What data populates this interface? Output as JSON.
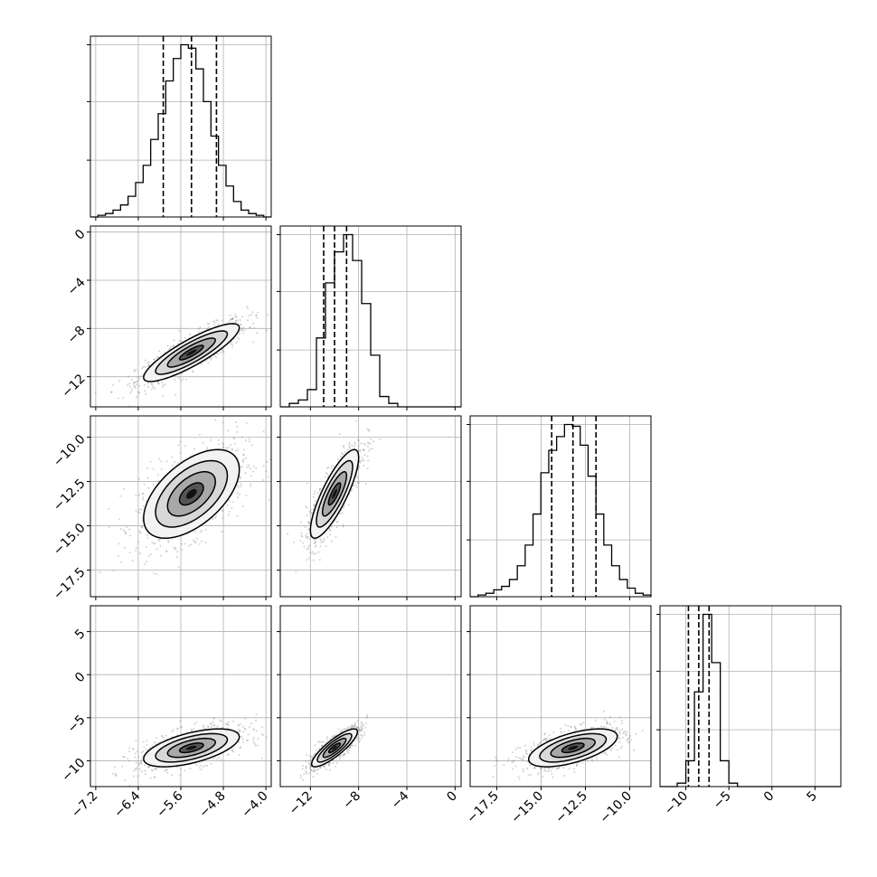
{
  "chart_data": {
    "type": "corner",
    "title": "",
    "parameters": [
      {
        "index": 0,
        "range": [
          -7.3,
          -3.9
        ],
        "ticks": [
          "-7.2",
          "-6.4",
          "-5.6",
          "-4.8",
          "-4.0"
        ],
        "quantiles": [
          -5.93,
          -5.4,
          -4.93
        ],
        "hist_peak": 1.0,
        "hist_grid_values": [
          0.33,
          0.67,
          1.0
        ],
        "hist_bins": [
          0.0,
          0.01,
          0.02,
          0.04,
          0.07,
          0.12,
          0.2,
          0.3,
          0.45,
          0.6,
          0.79,
          0.92,
          1.0,
          0.98,
          0.86,
          0.67,
          0.47,
          0.3,
          0.18,
          0.09,
          0.04,
          0.02,
          0.01,
          0.0
        ]
      },
      {
        "index": 1,
        "range": [
          -14.5,
          0.5
        ],
        "ticks": [
          "-12",
          "-8",
          "-4",
          "0"
        ],
        "quantiles": [
          -10.9,
          -10.0,
          -9.0
        ],
        "hist_peak": 1.0,
        "hist_grid_values": [
          0.33,
          0.67,
          1.0
        ],
        "hist_bins": [
          0.0,
          0.02,
          0.04,
          0.1,
          0.4,
          0.72,
          0.9,
          1.0,
          0.85,
          0.6,
          0.3,
          0.06,
          0.02,
          0.0,
          0.0,
          0.0,
          0.0,
          0.0,
          0.0,
          0.0
        ]
      },
      {
        "index": 2,
        "range": [
          -19.0,
          -8.8
        ],
        "ticks": [
          "-17.5",
          "-15.0",
          "-12.5",
          "-10.0"
        ],
        "quantiles": [
          -14.4,
          -13.2,
          -11.9
        ],
        "hist_peak": 1.0,
        "hist_grid_values": [
          0.33,
          0.67,
          1.0
        ],
        "hist_bins": [
          0.0,
          0.01,
          0.02,
          0.04,
          0.06,
          0.1,
          0.18,
          0.3,
          0.48,
          0.72,
          0.85,
          0.93,
          1.0,
          0.99,
          0.88,
          0.7,
          0.48,
          0.3,
          0.18,
          0.1,
          0.05,
          0.02,
          0.01
        ]
      },
      {
        "index": 3,
        "range": [
          -13.0,
          8.0
        ],
        "ticks": [
          "-10",
          "-5",
          "0",
          "5"
        ],
        "quantiles": [
          -9.7,
          -8.5,
          -7.3
        ],
        "hist_peak": 1.0,
        "hist_grid_values": [
          0.33,
          0.67,
          1.0
        ],
        "hist_bins": [
          0.0,
          0.0,
          0.02,
          0.15,
          0.55,
          1.0,
          0.72,
          0.15,
          0.02,
          0.0,
          0.0,
          0.0,
          0.0,
          0.0,
          0.0,
          0.0,
          0.0,
          0.0,
          0.0,
          0.0,
          0.0
        ]
      }
    ],
    "left_tick_labels": {
      "row1": [
        "0",
        "-4",
        "-8",
        "-12"
      ],
      "row2": [
        "-10.0",
        "-12.5",
        "-15.0",
        "-17.5"
      ],
      "row3": [
        "5",
        "0",
        "-5",
        "-10"
      ]
    },
    "pair_panels": [
      {
        "x": 0,
        "y": 1,
        "center": [
          -5.4,
          -10.0
        ],
        "sd": [
          0.45,
          1.2
        ],
        "corr": 0.86
      },
      {
        "x": 0,
        "y": 2,
        "center": [
          -5.4,
          -13.2
        ],
        "sd": [
          0.45,
          1.25
        ],
        "corr": 0.55
      },
      {
        "x": 1,
        "y": 2,
        "center": [
          -10.0,
          -13.2
        ],
        "sd": [
          1.0,
          1.25
        ],
        "corr": 0.82
      },
      {
        "x": 0,
        "y": 3,
        "center": [
          -5.4,
          -8.5
        ],
        "sd": [
          0.45,
          1.1
        ],
        "corr": 0.58
      },
      {
        "x": 1,
        "y": 3,
        "center": [
          -10.0,
          -8.5
        ],
        "sd": [
          0.95,
          1.1
        ],
        "corr": 0.85
      },
      {
        "x": 2,
        "y": 3,
        "center": [
          -13.2,
          -8.5
        ],
        "sd": [
          1.25,
          1.1
        ],
        "corr": 0.6
      }
    ],
    "contour_levels_sigma": [
      0.5,
      1.0,
      1.5,
      2.0
    ],
    "grid": true,
    "colors": {
      "points": "#7f7f7f",
      "lines": "#000000",
      "grid": "#b0b0b0"
    }
  }
}
